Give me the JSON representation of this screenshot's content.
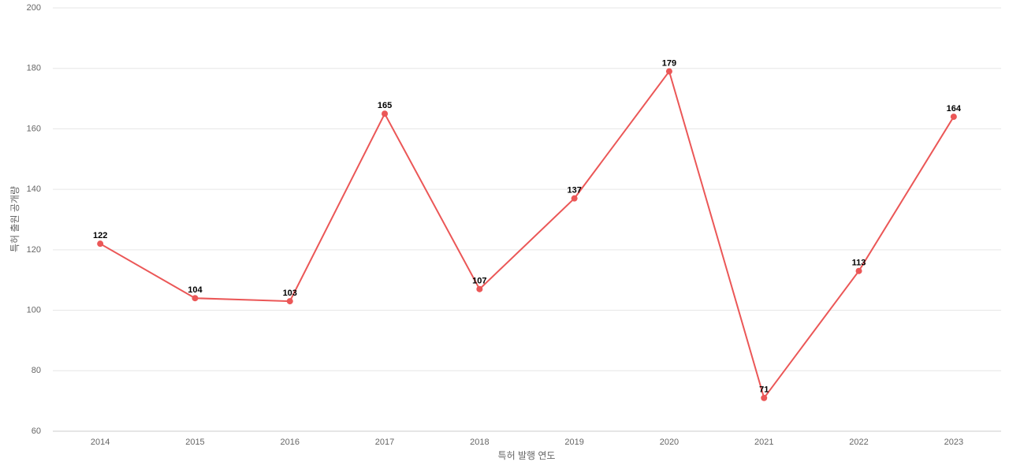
{
  "chart_data": {
    "type": "line",
    "x_label": "특허 발행 연도",
    "y_label": "특허 출원 공개량",
    "categories": [
      "2014",
      "2015",
      "2016",
      "2017",
      "2018",
      "2019",
      "2020",
      "2021",
      "2022",
      "2023"
    ],
    "values": [
      122,
      104,
      103,
      165,
      107,
      137,
      179,
      71,
      113,
      164
    ],
    "color": "#eb5757",
    "ylim": [
      60,
      200
    ],
    "yticks": [
      60,
      80,
      100,
      120,
      140,
      160,
      180,
      200
    ],
    "grid": true
  }
}
